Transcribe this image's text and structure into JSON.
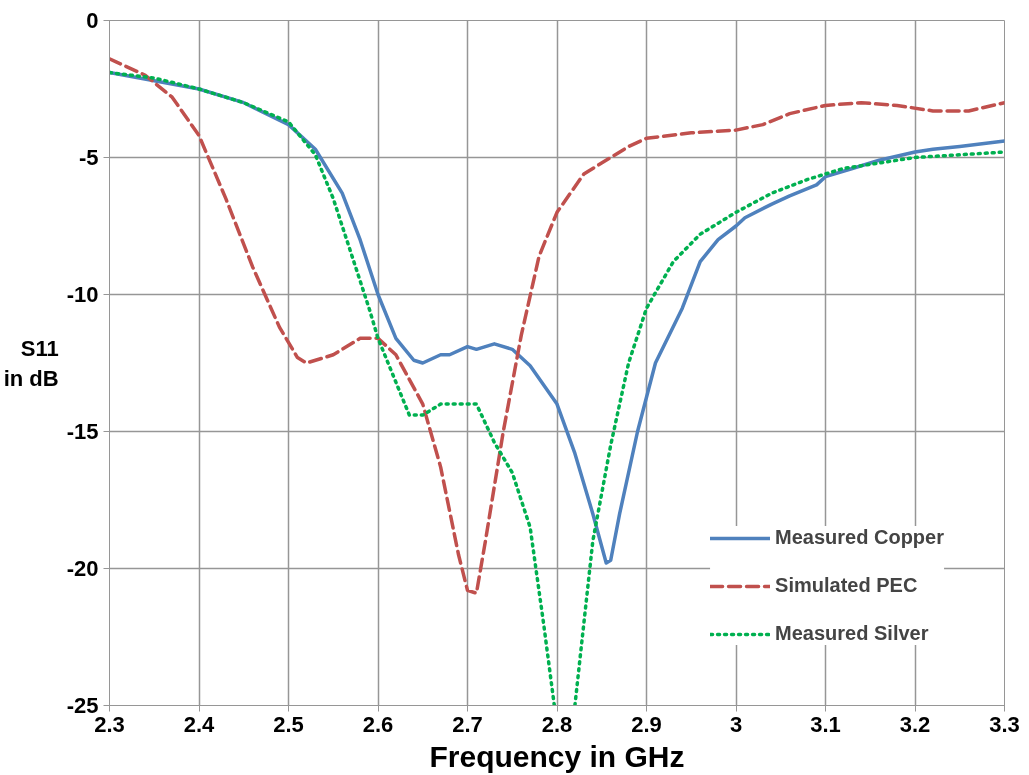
{
  "chart_data": {
    "type": "line",
    "xlabel": "Frequency in GHz",
    "ylabel": "S11\nin dB",
    "xlim": [
      2.3,
      3.3
    ],
    "xticks": [
      2.3,
      2.4,
      2.5,
      2.6,
      2.7,
      2.8,
      2.9,
      {
        "value": 3.0,
        "label": "3"
      },
      3.1,
      3.2,
      3.3
    ],
    "ylim": [
      -25,
      0
    ],
    "yticks": [
      -25,
      -20,
      -15,
      -10,
      -5,
      0
    ],
    "grid": true,
    "legend": "bottom right",
    "series": [
      {
        "name": "Measured Copper",
        "color": "#4f81bd",
        "line_style": "solid",
        "x": [
          2.3,
          2.35,
          2.4,
          2.45,
          2.5,
          2.53,
          2.56,
          2.58,
          2.6,
          2.62,
          2.64,
          2.65,
          2.67,
          2.68,
          2.7,
          2.71,
          2.73,
          2.75,
          2.77,
          2.8,
          2.82,
          2.84,
          2.855,
          2.86,
          2.87,
          2.89,
          2.91,
          2.94,
          2.96,
          2.98,
          3.0,
          3.01,
          3.04,
          3.06,
          3.09,
          3.1,
          3.13,
          3.16,
          3.2,
          3.22,
          3.25,
          3.3
        ],
        "values": [
          -1.9,
          -2.2,
          -2.5,
          -3.0,
          -3.8,
          -4.7,
          -6.3,
          -8.0,
          -10.0,
          -11.6,
          -12.4,
          -12.5,
          -12.2,
          -12.2,
          -11.9,
          -12.0,
          -11.8,
          -12.0,
          -12.6,
          -14.0,
          -15.8,
          -18.0,
          -19.8,
          -19.7,
          -18.0,
          -15.0,
          -12.5,
          -10.5,
          -8.8,
          -8.0,
          -7.5,
          -7.2,
          -6.7,
          -6.4,
          -6.0,
          -5.7,
          -5.4,
          -5.1,
          -4.8,
          -4.7,
          -4.6,
          -4.4
        ]
      },
      {
        "name": "Simulated PEC",
        "color": "#c0504d",
        "line_style": "dashed",
        "x": [
          2.3,
          2.34,
          2.37,
          2.4,
          2.43,
          2.46,
          2.49,
          2.51,
          2.52,
          2.55,
          2.58,
          2.6,
          2.62,
          2.65,
          2.67,
          2.69,
          2.7,
          2.71,
          2.72,
          2.74,
          2.76,
          2.78,
          2.8,
          2.83,
          2.86,
          2.88,
          2.9,
          2.95,
          3.0,
          3.03,
          3.06,
          3.1,
          3.14,
          3.18,
          3.22,
          3.26,
          3.3
        ],
        "values": [
          -1.4,
          -2.0,
          -2.8,
          -4.2,
          -6.5,
          -9.0,
          -11.2,
          -12.3,
          -12.5,
          -12.2,
          -11.6,
          -11.6,
          -12.2,
          -14.0,
          -16.3,
          -19.5,
          -20.8,
          -20.9,
          -19.0,
          -15.0,
          -11.5,
          -8.6,
          -7.0,
          -5.6,
          -5.0,
          -4.6,
          -4.3,
          -4.1,
          -4.0,
          -3.8,
          -3.4,
          -3.1,
          -3.0,
          -3.1,
          -3.3,
          -3.3,
          -3.0
        ]
      },
      {
        "name": "Measured Silver",
        "color": "#00b050",
        "line_style": "dotted",
        "x": [
          2.3,
          2.35,
          2.4,
          2.45,
          2.5,
          2.53,
          2.55,
          2.57,
          2.59,
          2.6,
          2.62,
          2.635,
          2.65,
          2.67,
          2.69,
          2.71,
          2.73,
          2.75,
          2.77,
          2.785,
          2.797,
          2.81,
          2.82,
          2.83,
          2.84,
          2.86,
          2.88,
          2.9,
          2.93,
          2.96,
          3.0,
          3.04,
          3.08,
          3.12,
          3.16,
          3.2,
          3.25,
          3.3
        ],
        "values": [
          -1.9,
          -2.1,
          -2.5,
          -3.0,
          -3.7,
          -4.9,
          -6.5,
          -8.5,
          -10.5,
          -11.6,
          -13.2,
          -14.4,
          -14.4,
          -14.0,
          -14.0,
          -14.0,
          -15.4,
          -16.5,
          -18.5,
          -22.0,
          -25.0,
          null,
          -25.0,
          -22.0,
          -19.0,
          -15.5,
          -12.5,
          -10.5,
          -8.8,
          -7.8,
          -7.0,
          -6.3,
          -5.8,
          -5.4,
          -5.2,
          -5.0,
          -4.9,
          -4.8
        ]
      }
    ]
  }
}
